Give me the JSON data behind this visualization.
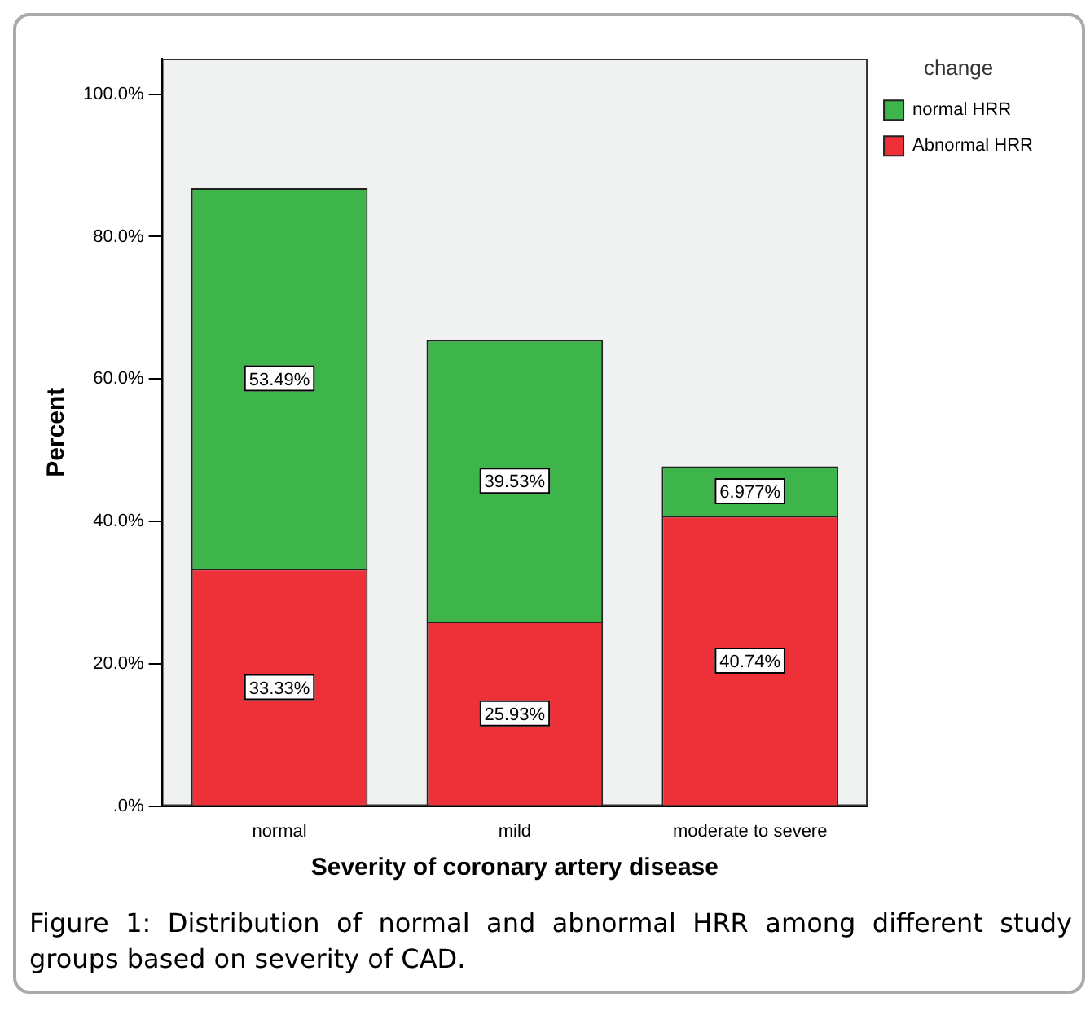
{
  "chart_data": {
    "type": "bar",
    "xlabel": "Severity of coronary artery disease",
    "ylabel": "Percent",
    "legend_title": "change",
    "categories": [
      "normal",
      "mild",
      "moderate to severe"
    ],
    "series": [
      {
        "name": "Abnormal HRR",
        "color": "#ee3039",
        "values": [
          33.33,
          25.93,
          40.74
        ],
        "value_labels": [
          "33.33%",
          "25.93%",
          "40.74%"
        ]
      },
      {
        "name": "normal HRR",
        "color": "#3db54a",
        "values": [
          53.49,
          39.53,
          6.977
        ],
        "value_labels": [
          "53.49%",
          "39.53%",
          "6.977%"
        ]
      }
    ],
    "stacked": true,
    "ylim": [
      0,
      105
    ],
    "yticks": [
      {
        "value": 0,
        "label": ".0%"
      },
      {
        "value": 20,
        "label": "20.0%"
      },
      {
        "value": 40,
        "label": "40.0%"
      },
      {
        "value": 60,
        "label": "60.0%"
      },
      {
        "value": 80,
        "label": "80.0%"
      },
      {
        "value": 100,
        "label": "100.0%"
      }
    ],
    "grid": false,
    "legend": "top right",
    "annotations": [
      "Figure 1: Distribution of normal and abnormal HRR among different study groups based on severity of CAD."
    ]
  }
}
